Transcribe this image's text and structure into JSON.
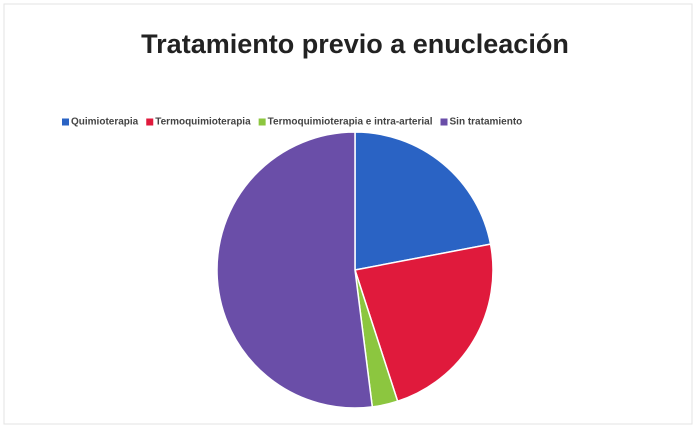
{
  "chart_data": {
    "type": "pie",
    "title": "Tratamiento previo a enucleación",
    "categories": [
      "Quimioterapia",
      "Termoquimioterapia",
      "Termoquimioterapia e intra-arterial",
      "Sin tratamiento"
    ],
    "values": [
      22,
      23,
      3,
      52
    ],
    "colors": [
      "#2a63c4",
      "#e01a3c",
      "#8cc63f",
      "#6a4ea8"
    ],
    "legend": "top"
  }
}
